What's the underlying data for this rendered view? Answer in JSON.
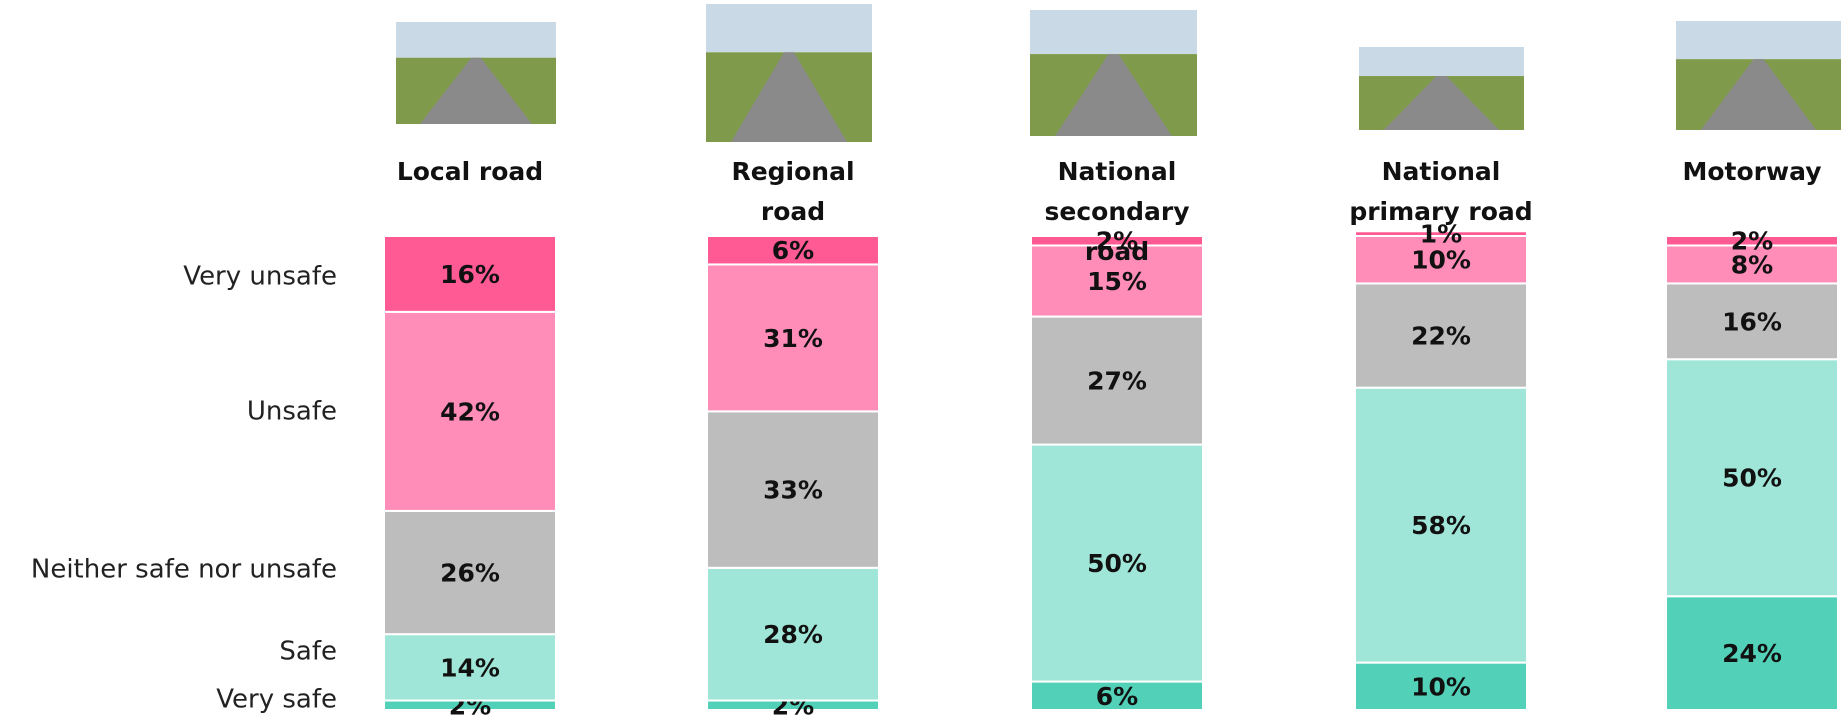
{
  "chart_data": {
    "type": "stacked_bar",
    "categories": [
      "Local road",
      "Regional road",
      "National secondary road",
      "National primary road",
      "Motorway"
    ],
    "ylim": [
      0,
      100
    ],
    "series": [
      {
        "name": "Very safe",
        "color": "#52d1b8",
        "values": [
          2,
          2,
          6,
          10,
          24
        ],
        "value_labels": [
          "2%",
          "2%",
          "6%",
          "10%",
          "24%"
        ]
      },
      {
        "name": "Safe",
        "color": "#a0e6d8",
        "values": [
          14,
          28,
          50,
          58,
          50
        ],
        "value_labels": [
          "14%",
          "28%",
          "50%",
          "58%",
          "50%"
        ]
      },
      {
        "name": "Neither safe nor unsafe",
        "color": "#bdbdbd",
        "values": [
          26,
          33,
          27,
          22,
          16
        ],
        "value_labels": [
          "26%",
          "33%",
          "27%",
          "22%",
          "16%"
        ]
      },
      {
        "name": "Unsafe",
        "color": "#ff8db8",
        "values": [
          42,
          31,
          15,
          10,
          8
        ],
        "value_labels": [
          "42%",
          "31%",
          "15%",
          "10%",
          "8%"
        ]
      },
      {
        "name": "Very unsafe",
        "color": "#ff5a93",
        "values": [
          16,
          6,
          2,
          1,
          2
        ],
        "value_labels": [
          "16%",
          "6%",
          "2%",
          "1%",
          "2%"
        ]
      }
    ]
  }
}
